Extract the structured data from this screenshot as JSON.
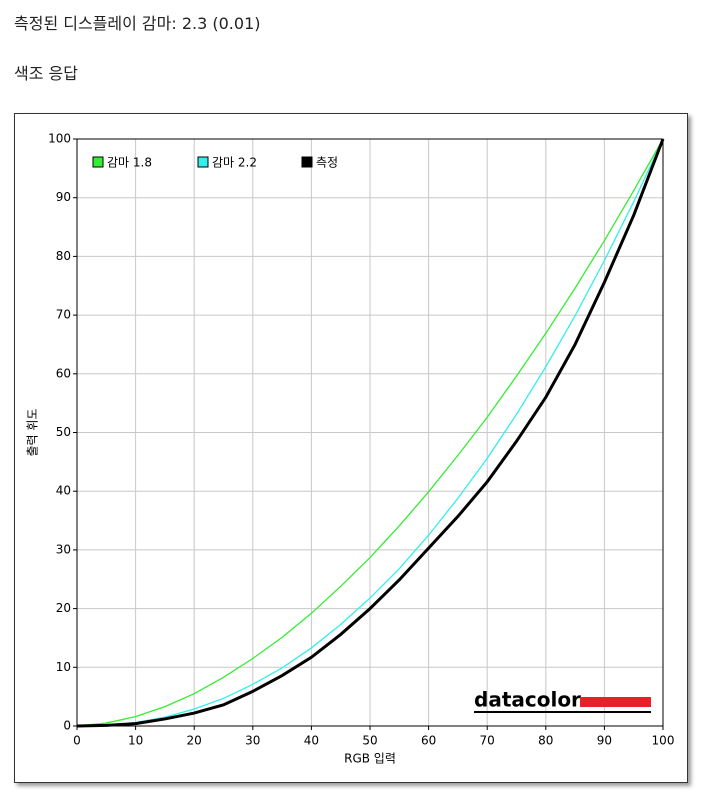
{
  "header": {
    "title": "측정된 디스플레이 감마: 2.3 (0.01)",
    "subtitle": "색조 응답"
  },
  "chart_data": {
    "type": "line",
    "x_label": "RGB 입력",
    "y_label": "출력 휘도",
    "logo": "datacolor",
    "x": [
      0,
      5,
      10,
      15,
      20,
      25,
      30,
      35,
      40,
      45,
      50,
      55,
      60,
      65,
      70,
      75,
      80,
      85,
      90,
      95,
      100
    ],
    "series": [
      {
        "name": "감마 1.8",
        "color": "#33ee33",
        "values": [
          0,
          0.5,
          1.6,
          3.3,
          5.5,
          8.3,
          11.5,
          15.1,
          19.2,
          23.8,
          28.7,
          34.1,
          39.9,
          46.1,
          52.6,
          59.6,
          66.9,
          74.6,
          82.7,
          91.2,
          100
        ]
      },
      {
        "name": "감마 2.2",
        "color": "#33eeee",
        "values": [
          0,
          0.1,
          0.6,
          1.5,
          2.9,
          4.7,
          7.1,
          9.9,
          13.3,
          17.3,
          21.8,
          26.8,
          32.5,
          38.8,
          45.6,
          53.1,
          61.2,
          69.9,
          79.3,
          89.3,
          100
        ]
      },
      {
        "name": "측정",
        "color": "#000000",
        "values": [
          0,
          0.1,
          0.4,
          1.2,
          2.2,
          3.6,
          5.9,
          8.6,
          11.7,
          15.6,
          20.0,
          24.9,
          30.3,
          35.7,
          41.6,
          48.5,
          56.0,
          65.0,
          75.6,
          87.0,
          100
        ]
      }
    ],
    "xlim": [
      0,
      100
    ],
    "ylim": [
      0,
      100
    ],
    "xticks": [
      0,
      10,
      20,
      30,
      40,
      50,
      60,
      70,
      80,
      90,
      100
    ],
    "yticks": [
      0,
      10,
      20,
      30,
      40,
      50,
      60,
      70,
      80,
      90,
      100
    ],
    "grid": true
  }
}
